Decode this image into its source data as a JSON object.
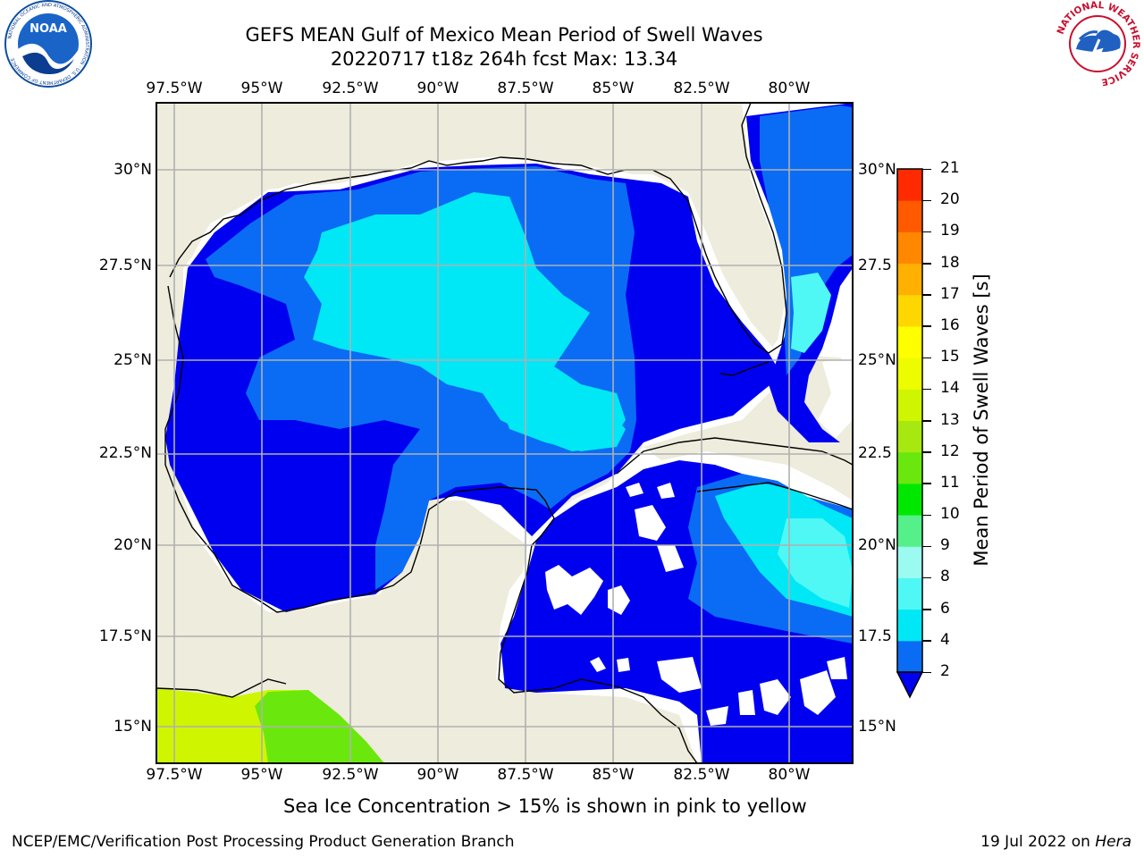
{
  "title": {
    "line1": "GEFS MEAN Gulf of Mexico Mean Period of Swell Waves",
    "line2": "20220717 t18z 264h fcst   Max: 13.34"
  },
  "logos": {
    "noaa_text": "NOAA",
    "noaa_ring": "NATIONAL OCEANIC AND ATMOSPHERIC ADMINISTRATION · U.S. DEPARTMENT OF COMMERCE",
    "nws_ring": "NATIONAL WEATHER SERVICE"
  },
  "map": {
    "lon_ticks": [
      "97.5°W",
      "95°W",
      "92.5°W",
      "90°W",
      "87.5°W",
      "85°W",
      "82.5°W",
      "80°W"
    ],
    "lat_ticks_left": [
      "30°N",
      "27.5°N",
      "25°N",
      "22.5°N",
      "20°N",
      "17.5°N",
      "15°N"
    ],
    "lat_ticks_right": [
      "30°N",
      "27.5",
      "25°N",
      "22.5",
      "20°N",
      "17.5",
      "15°N"
    ],
    "lon_range": [
      -98,
      -78.2
    ],
    "lat_range": [
      14,
      31.7
    ],
    "land_color": "#eeecdc",
    "grid_color": "#b0b0b0"
  },
  "colorbar": {
    "label": "Mean Period of Swell Waves [s]",
    "ticks": [
      "2",
      "4",
      "6",
      "8",
      "9",
      "10",
      "11",
      "12",
      "13",
      "14",
      "15",
      "16",
      "17",
      "18",
      "19",
      "20",
      "21"
    ],
    "colors": [
      "#0a6cf5",
      "#00e8f5",
      "#4ff8f5",
      "#9cfbf0",
      "#55f08a",
      "#00e800",
      "#6ae80e",
      "#a6e810",
      "#d0f500",
      "#eefc00",
      "#ffff00",
      "#ffd700",
      "#ffb000",
      "#ff8800",
      "#ff5a00",
      "#ff2a00"
    ],
    "under_color": "#0000f0"
  },
  "note": "Sea Ice Concentration > 15% is shown in pink to yellow",
  "footer": {
    "left": "NCEP/EMC/Verification Post Processing Product Generation Branch",
    "right_date": "19 Jul 2022 on ",
    "right_host": "Hera"
  }
}
